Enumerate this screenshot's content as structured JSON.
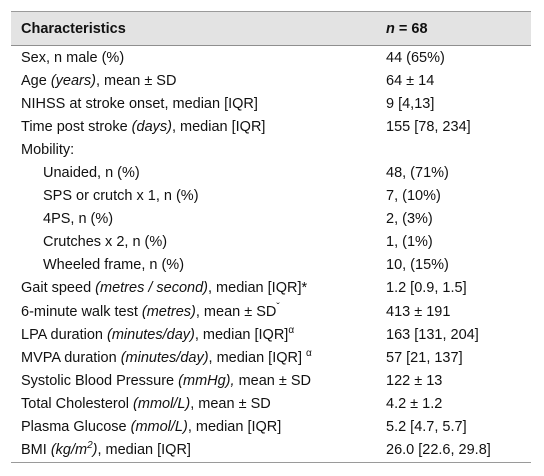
{
  "header": {
    "col1": "Characteristics",
    "col2_n": "n",
    "col2_rest": " = 68"
  },
  "rows": [
    {
      "pre": "Sex, n male (%)",
      "it": "",
      "post": "",
      "sup": "",
      "value": "44 (65%)"
    },
    {
      "pre": "Age ",
      "it": "(years)",
      "post": ", mean ± SD",
      "sup": "",
      "value": "64 ± 14"
    },
    {
      "pre": "NIHSS at stroke onset, median [IQR]",
      "it": "",
      "post": "",
      "sup": "",
      "value": "9 [4,13]"
    },
    {
      "pre": "Time post stroke ",
      "it": "(days)",
      "post": ", median [IQR]",
      "sup": "",
      "value": "155 [78, 234]"
    },
    {
      "pre": "Mobility:",
      "it": "",
      "post": "",
      "sup": "",
      "value": ""
    },
    {
      "pre": "Unaided, n (%)",
      "it": "",
      "post": "",
      "sup": "",
      "value": "48, (71%)",
      "indent": true
    },
    {
      "pre": "SPS or crutch x 1, n (%)",
      "it": "",
      "post": "",
      "sup": "",
      "value": "7, (10%)",
      "indent": true
    },
    {
      "pre": "4PS, n (%)",
      "it": "",
      "post": "",
      "sup": "",
      "value": "2, (3%)",
      "indent": true
    },
    {
      "pre": "Crutches x 2, n (%)",
      "it": "",
      "post": "",
      "sup": "",
      "value": "1, (1%)",
      "indent": true
    },
    {
      "pre": "Wheeled frame, n (%)",
      "it": "",
      "post": "",
      "sup": "",
      "value": "10, (15%)",
      "indent": true
    },
    {
      "pre": "Gait speed ",
      "it": "(metres / second)",
      "post": ", median [IQR]*",
      "sup": "",
      "value": "1.2 [0.9, 1.5]"
    },
    {
      "pre": "6-minute walk test ",
      "it": "(metres)",
      "post": ", mean ± SD",
      "sup": "ˇ",
      "value": "413 ± 191"
    },
    {
      "pre": "LPA duration ",
      "it": "(minutes/day)",
      "post": ", median [IQR]",
      "sup": "α",
      "value": "163 [131, 204]"
    },
    {
      "pre": "MVPA duration ",
      "it": "(minutes/day)",
      "post": ", median [IQR] ",
      "sup": "α",
      "value": "57 [21, 137]"
    },
    {
      "pre": "Systolic Blood Pressure ",
      "it": "(mmHg),",
      "post": " mean ± SD",
      "sup": "",
      "value": "122 ± 13"
    },
    {
      "pre": "Total Cholesterol ",
      "it": "(mmol/L)",
      "post": ", mean ± SD",
      "sup": "",
      "value": "4.2 ± 1.2"
    },
    {
      "pre": "Plasma Glucose ",
      "it": "(mmol/L)",
      "post": ", median [IQR]",
      "sup": "",
      "value": "5.2 [4.7, 5.7]"
    },
    {
      "pre": "BMI ",
      "it": "(kg/m",
      "it_sup": "2",
      "it_end": ")",
      "post": ", median [IQR]",
      "sup": "",
      "value": "26.0 [22.6, 29.8]"
    }
  ]
}
